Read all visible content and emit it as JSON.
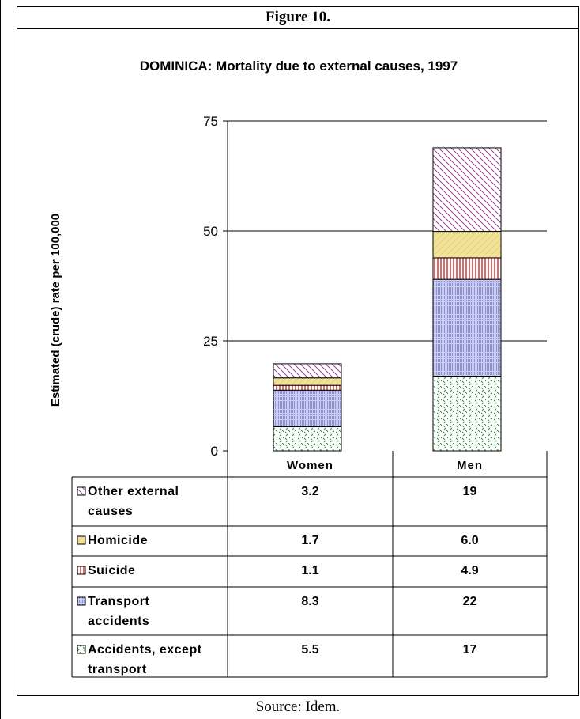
{
  "figure_label": "Figure 10.",
  "source": "Source: Idem.",
  "colors": {
    "accidents": "#2e8b3c",
    "transport": "#2c3aa0",
    "suicide": "#c81e1e",
    "homicide": "#f2e39a",
    "other": "#8b2a8b"
  },
  "chart_data": {
    "type": "bar",
    "stacked": true,
    "title": "DOMINICA: Mortality due to external causes, 1997",
    "xlabel": "",
    "ylabel": "Estimated (crude) rate per 100,000",
    "ylim": [
      0,
      75
    ],
    "yticks": [
      0,
      25,
      50,
      75
    ],
    "grid": true,
    "categories": [
      "Women",
      "Men"
    ],
    "series": [
      {
        "name": "Accidents, except transport",
        "values": [
          5.5,
          17
        ],
        "labels": [
          "5.5",
          "17"
        ],
        "pattern": "accidents"
      },
      {
        "name": "Transport accidents",
        "values": [
          8.3,
          22
        ],
        "labels": [
          "8.3",
          "22"
        ],
        "pattern": "transport"
      },
      {
        "name": "Suicide",
        "values": [
          1.1,
          4.9
        ],
        "labels": [
          "1.1",
          "4.9"
        ],
        "pattern": "suicide"
      },
      {
        "name": "Homicide",
        "values": [
          1.7,
          6.0
        ],
        "labels": [
          "1.7",
          "6.0"
        ],
        "pattern": "homicide"
      },
      {
        "name": "Other external causes",
        "values": [
          3.2,
          19
        ],
        "labels": [
          "3.2",
          "19"
        ],
        "pattern": "other"
      }
    ],
    "table_rows_order": [
      "Other external causes",
      "Homicide",
      "Suicide",
      "Transport accidents",
      "Accidents, except transport"
    ],
    "table_row_label_lines": {
      "Other external causes": [
        "Other external",
        "causes"
      ],
      "Homicide": [
        "Homicide"
      ],
      "Suicide": [
        "Suicide"
      ],
      "Transport accidents": [
        "Transport",
        "accidents"
      ],
      "Accidents, except transport": [
        "Accidents, except",
        "transport"
      ]
    }
  }
}
